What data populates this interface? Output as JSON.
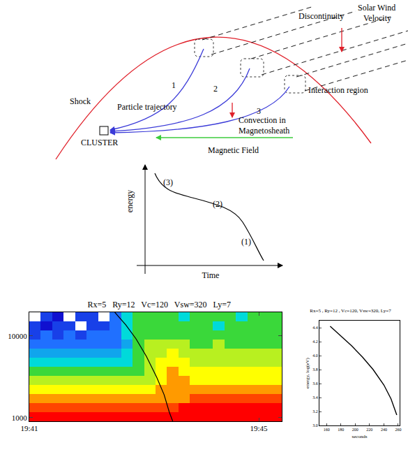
{
  "diagram": {
    "labels": {
      "discontinuity": "Discontinuity",
      "solar_wind": [
        "Solar Wind",
        "Velocity"
      ],
      "shock": "Shock",
      "particle_trajectory": "Particle trajectory",
      "trajectories": [
        "1",
        "2",
        "3"
      ],
      "interaction_region": "Interaction region",
      "convection": [
        "Convection in",
        "Magnetosheath"
      ],
      "cluster": "CLUSTER",
      "magnetic_field": "Magnetic Field"
    }
  },
  "schematic": {
    "x_label": "Time",
    "y_label": "energy",
    "curve_labels": [
      "(3)",
      "(2)",
      "(1)"
    ]
  },
  "chart_data": [
    {
      "type": "heatmap",
      "title": "Rx=5   Ry=12   Vc=120   Vsw=320   Ly=7",
      "log": "y",
      "x_edges": [
        1181,
        1181.2,
        1181.4,
        1181.6,
        1181.8,
        1182,
        1182.2,
        1182.4,
        1182.6,
        1182.8,
        1183,
        1183.2,
        1183.4,
        1183.6,
        1183.8,
        1184,
        1184.2,
        1184.4,
        1184.6,
        1184.8,
        1185,
        1185.2,
        1185.4
      ],
      "y_edges": [
        906,
        1170,
        1510,
        1950,
        2520,
        3250,
        4200,
        5420,
        7000,
        9040,
        11670,
        15070,
        19500
      ],
      "cells": [
        [
          10,
          10,
          10,
          10,
          10,
          10,
          10,
          10,
          10,
          10,
          10,
          10,
          10,
          10,
          10,
          10,
          10,
          10,
          10,
          10,
          10,
          10
        ],
        [
          9,
          9,
          9,
          9,
          9,
          9,
          9,
          9,
          9,
          9,
          9,
          9,
          9,
          10,
          10,
          10,
          10,
          10,
          10,
          10,
          10,
          10
        ],
        [
          8,
          8,
          8,
          8,
          8,
          8,
          8,
          8,
          8,
          8,
          8,
          8,
          8,
          8,
          9,
          9,
          9,
          9,
          9,
          9,
          9,
          9
        ],
        [
          7,
          7,
          7,
          7,
          7,
          7,
          7,
          7,
          7,
          7,
          7,
          8,
          8,
          8,
          8,
          8,
          8,
          8,
          8,
          8,
          8,
          8
        ],
        [
          6,
          6,
          6,
          6,
          6,
          6,
          6,
          6,
          6,
          6,
          6,
          7,
          8,
          8,
          7,
          7,
          7,
          7,
          7,
          7,
          7,
          7
        ],
        [
          5,
          5,
          5,
          5,
          5,
          5,
          5,
          5,
          5,
          5,
          6,
          7,
          8,
          7,
          7,
          7,
          7,
          7,
          7,
          7,
          7,
          7
        ],
        [
          4,
          4,
          4,
          4,
          4,
          4,
          4,
          4,
          4,
          5,
          6,
          7,
          7,
          7,
          6,
          6,
          6,
          6,
          6,
          6,
          6,
          6
        ],
        [
          3,
          3,
          3,
          3,
          3,
          3,
          3,
          3,
          4,
          5,
          6,
          6,
          7,
          6,
          6,
          6,
          6,
          6,
          6,
          6,
          6,
          6
        ],
        [
          2,
          2,
          2,
          2,
          2,
          2,
          2,
          2,
          3,
          5,
          6,
          6,
          6,
          6,
          5,
          5,
          6,
          5,
          5,
          5,
          5,
          5
        ],
        [
          1,
          2,
          1,
          2,
          1,
          2,
          2,
          2,
          4,
          5,
          5,
          5,
          5,
          5,
          5,
          5,
          5,
          5,
          5,
          5,
          5,
          5
        ],
        [
          1,
          0,
          1,
          1,
          null,
          1,
          1,
          2,
          4,
          5,
          5,
          5,
          5,
          5,
          5,
          5,
          4,
          5,
          5,
          5,
          5,
          5
        ],
        [
          null,
          1,
          0,
          null,
          1,
          1,
          null,
          2,
          4,
          5,
          5,
          5,
          5,
          4,
          5,
          5,
          5,
          5,
          4,
          5,
          5,
          5
        ]
      ],
      "zlim": [
        0,
        10
      ],
      "xlim": [
        1181,
        1185.4
      ],
      "ylim": [
        906,
        19500
      ],
      "xticks": [
        {
          "value": 1181,
          "label": "19:41"
        },
        {
          "value": 1185,
          "label": "19:45"
        }
      ],
      "yticks": [
        1000,
        10000
      ],
      "curve": {
        "color": "#000000",
        "x": [
          1182.49,
          1182.68,
          1182.86,
          1183.04,
          1183.22,
          1183.35,
          1183.44,
          1183.5
        ],
        "y": [
          19500,
          13700,
          9240,
          5650,
          3130,
          1910,
          1170,
          906
        ]
      }
    },
    {
      "type": "line",
      "title": "Rx=5 , Ry=12 , Vc=120, Vsw=320, Ly=7",
      "x_label": "seconds",
      "y_label": "energy, log(eV)",
      "color": "#000000",
      "x": [
        165,
        180,
        195,
        210,
        225,
        240,
        250,
        258
      ],
      "values": [
        4.42,
        4.28,
        4.14,
        3.98,
        3.8,
        3.58,
        3.38,
        3.15
      ],
      "xlim": [
        150,
        262
      ],
      "ylim": [
        3.0,
        4.5
      ],
      "xticks": [
        160,
        180,
        200,
        220,
        240,
        260
      ],
      "yticks": [
        {
          "value": 3.0,
          "label": "3.0"
        },
        3.2,
        3.4,
        3.6,
        3.8,
        {
          "value": 4.0,
          "label": "4.0"
        },
        4.2,
        4.4
      ]
    }
  ]
}
